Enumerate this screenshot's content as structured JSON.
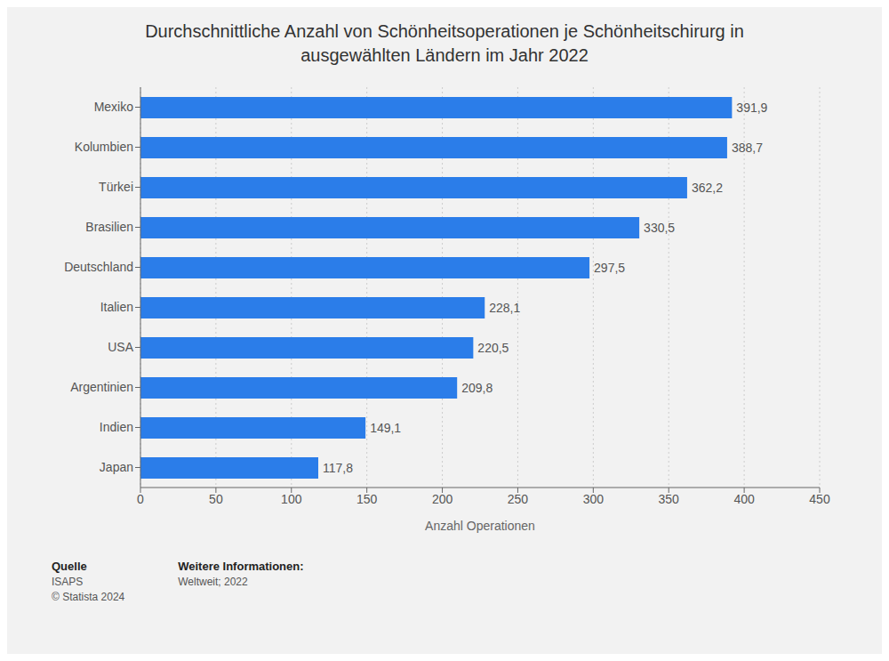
{
  "chart_data": {
    "type": "bar",
    "orientation": "horizontal",
    "title": "Durchschnittliche Anzahl von Schönheitsoperationen je Schönheitschirurg in\nausgewählten Ländern im Jahr 2022",
    "categories": [
      "Mexiko",
      "Kolumbien",
      "Türkei",
      "Brasilien",
      "Deutschland",
      "Italien",
      "USA",
      "Argentinien",
      "Indien",
      "Japan"
    ],
    "values": [
      391.9,
      388.7,
      362.2,
      330.5,
      297.5,
      228.1,
      220.5,
      209.8,
      149.1,
      117.8
    ],
    "value_labels": [
      "391,9",
      "388,7",
      "362,2",
      "330,5",
      "297,5",
      "228,1",
      "220,5",
      "209,8",
      "149,1",
      "117,8"
    ],
    "data_labels": true,
    "color": "#2b7de9",
    "xlabel": "Anzahl Operationen",
    "xlim": [
      0,
      450
    ],
    "xticks": [
      0,
      50,
      100,
      150,
      200,
      250,
      300,
      350,
      400,
      450
    ],
    "grid": true,
    "annotations": [
      [
        "Quelle",
        "ISAPS",
        "© Statista 2024"
      ],
      [
        "Weitere Informationen:",
        "Weltweit; 2022"
      ]
    ]
  }
}
